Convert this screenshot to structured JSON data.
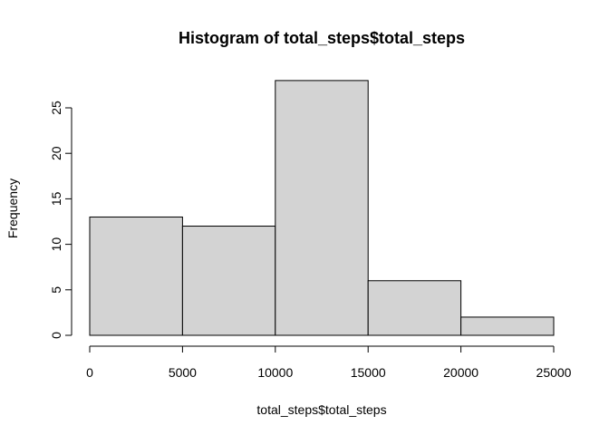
{
  "chart_data": {
    "type": "bar",
    "title": "Histogram of total_steps$total_steps",
    "xlabel": "total_steps$total_steps",
    "ylabel": "Frequency",
    "bins": [
      {
        "from": 0,
        "to": 5000,
        "count": 13
      },
      {
        "from": 5000,
        "to": 10000,
        "count": 12
      },
      {
        "from": 10000,
        "to": 15000,
        "count": 28
      },
      {
        "from": 15000,
        "to": 20000,
        "count": 6
      },
      {
        "from": 20000,
        "to": 25000,
        "count": 2
      }
    ],
    "x_ticks": [
      "0",
      "5000",
      "10000",
      "15000",
      "20000",
      "25000"
    ],
    "y_ticks": [
      "0",
      "5",
      "10",
      "15",
      "20",
      "25"
    ],
    "xlim": [
      0,
      25000
    ],
    "ylim": [
      0,
      28
    ],
    "grid": false,
    "bar_color": "#d3d3d3",
    "edge_color": "#000000"
  }
}
